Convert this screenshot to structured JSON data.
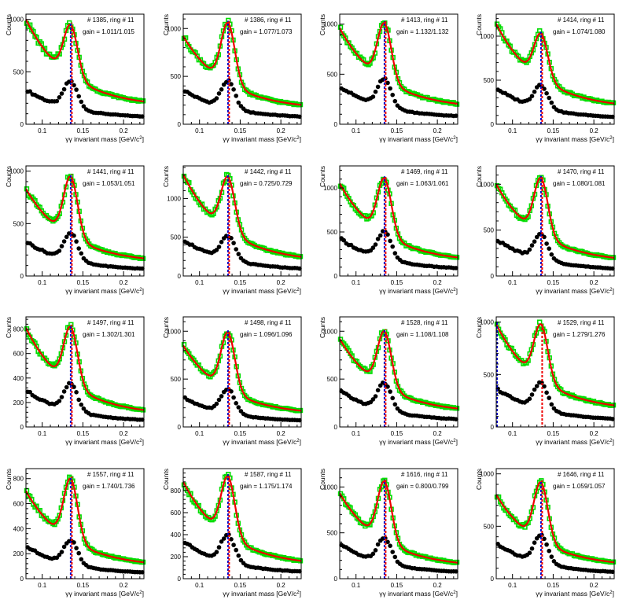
{
  "figure": {
    "xlabel_prefix": "γγ invariant mass [GeV/c",
    "xlabel_exponent": "2",
    "xlabel_suffix": "]",
    "ylabel": "Counts",
    "x_ticks": [
      "0.1",
      "0.15",
      "0.2"
    ],
    "colors": {
      "lower_markers": "#000000",
      "upper_markers": "#00dd00",
      "fit_curve": "#ee0000",
      "line_red": "#ee0000",
      "line_blue": "#0000cc"
    }
  },
  "chart_data": [
    {
      "type": "scatter",
      "title": "# 1385, ring # 11",
      "gain": "gain = 1.011/1.015",
      "xlim": [
        0.08,
        0.225
      ],
      "ylim": [
        0,
        1050
      ],
      "y_ticks": [
        0,
        500,
        1000
      ],
      "xlabel": "γγ invariant mass [GeV/c^2]",
      "ylabel": "Counts",
      "upper": {
        "base": 1000,
        "dip": 610,
        "peak": 950,
        "tail": 160
      },
      "lower": {
        "base": 330,
        "dip": 170,
        "peak": 410,
        "tail": 55
      },
      "peak_x": 0.135,
      "blue_x": 0.135
    },
    {
      "type": "scatter",
      "title": "# 1386, ring # 11",
      "gain": "gain = 1.077/1.073",
      "xlim": [
        0.08,
        0.225
      ],
      "ylim": [
        0,
        1150
      ],
      "y_ticks": [
        0,
        500,
        1000
      ],
      "xlabel": "γγ invariant mass [GeV/c^2]",
      "ylabel": "Counts",
      "upper": {
        "base": 920,
        "dip": 640,
        "peak": 1060,
        "tail": 150
      },
      "lower": {
        "base": 360,
        "dip": 240,
        "peak": 450,
        "tail": 60
      },
      "peak_x": 0.135,
      "blue_x": 0.135
    },
    {
      "type": "scatter",
      "title": "# 1413, ring # 11",
      "gain": "gain = 1.132/1.132",
      "xlim": [
        0.08,
        0.225
      ],
      "ylim": [
        0,
        1100
      ],
      "y_ticks": [
        0,
        500,
        1000
      ],
      "xlabel": "γγ invariant mass [GeV/c^2]",
      "ylabel": "Counts",
      "upper": {
        "base": 960,
        "dip": 690,
        "peak": 1010,
        "tail": 150
      },
      "lower": {
        "base": 380,
        "dip": 260,
        "peak": 450,
        "tail": 60
      },
      "peak_x": 0.135,
      "blue_x": 0.135
    },
    {
      "type": "scatter",
      "title": "# 1414, ring # 11",
      "gain": "gain = 1.074/1.080",
      "xlim": [
        0.08,
        0.225
      ],
      "ylim": [
        0,
        1250
      ],
      "y_ticks": [
        0,
        500,
        1000
      ],
      "xlabel": "γγ invariant mass [GeV/c^2]",
      "ylabel": "Counts",
      "upper": {
        "base": 1140,
        "dip": 700,
        "peak": 1030,
        "tail": 170
      },
      "lower": {
        "base": 410,
        "dip": 250,
        "peak": 450,
        "tail": 60
      },
      "peak_x": 0.135,
      "blue_x": 0.135
    },
    {
      "type": "scatter",
      "title": "# 1441, ring # 11",
      "gain": "gain = 1.053/1.051",
      "xlim": [
        0.08,
        0.225
      ],
      "ylim": [
        0,
        1050
      ],
      "y_ticks": [
        0,
        500,
        1000
      ],
      "xlabel": "γγ invariant mass [GeV/c^2]",
      "ylabel": "Counts",
      "upper": {
        "base": 830,
        "dip": 570,
        "peak": 950,
        "tail": 120
      },
      "lower": {
        "base": 330,
        "dip": 200,
        "peak": 410,
        "tail": 50
      },
      "peak_x": 0.135,
      "blue_x": 0.135
    },
    {
      "type": "scatter",
      "title": "# 1442, ring # 11",
      "gain": "gain = 0.725/0.729",
      "xlim": [
        0.08,
        0.225
      ],
      "ylim": [
        0,
        1420
      ],
      "y_ticks": [
        0,
        500,
        1000
      ],
      "xlabel": "γγ invariant mass [GeV/c^2]",
      "ylabel": "Counts",
      "upper": {
        "base": 1310,
        "dip": 760,
        "peak": 1280,
        "tail": 170
      },
      "lower": {
        "base": 470,
        "dip": 310,
        "peak": 520,
        "tail": 70
      },
      "peak_x": 0.135,
      "blue_x": 0.135
    },
    {
      "type": "scatter",
      "title": "# 1469, ring # 11",
      "gain": "gain = 1.063/1.061",
      "xlim": [
        0.08,
        0.225
      ],
      "ylim": [
        0,
        1250
      ],
      "y_ticks": [
        0,
        500,
        1000
      ],
      "xlabel": "γγ invariant mass [GeV/c^2]",
      "ylabel": "Counts",
      "upper": {
        "base": 1050,
        "dip": 730,
        "peak": 1110,
        "tail": 150
      },
      "lower": {
        "base": 430,
        "dip": 300,
        "peak": 500,
        "tail": 65
      },
      "peak_x": 0.135,
      "blue_x": 0.135
    },
    {
      "type": "scatter",
      "title": "# 1470, ring # 11",
      "gain": "gain = 1.080/1.081",
      "xlim": [
        0.08,
        0.225
      ],
      "ylim": [
        0,
        1200
      ],
      "y_ticks": [
        0,
        500,
        1000
      ],
      "xlabel": "γγ invariant mass [GeV/c^2]",
      "ylabel": "Counts",
      "upper": {
        "base": 1000,
        "dip": 690,
        "peak": 1070,
        "tail": 140
      },
      "lower": {
        "base": 400,
        "dip": 280,
        "peak": 450,
        "tail": 60
      },
      "peak_x": 0.135,
      "blue_x": 0.135
    },
    {
      "type": "scatter",
      "title": "# 1497, ring # 11",
      "gain": "gain = 1.302/1.301",
      "xlim": [
        0.08,
        0.225
      ],
      "ylim": [
        0,
        900
      ],
      "y_ticks": [
        0,
        200,
        400,
        600,
        800
      ],
      "xlabel": "γγ invariant mass [GeV/c^2]",
      "ylabel": "Counts",
      "upper": {
        "base": 810,
        "dip": 510,
        "peak": 820,
        "tail": 90
      },
      "lower": {
        "base": 300,
        "dip": 190,
        "peak": 350,
        "tail": 40
      },
      "peak_x": 0.135,
      "blue_x": 0.135
    },
    {
      "type": "scatter",
      "title": "# 1498, ring # 11",
      "gain": "gain = 1.096/1.096",
      "xlim": [
        0.08,
        0.225
      ],
      "ylim": [
        0,
        1150
      ],
      "y_ticks": [
        0,
        500,
        1000
      ],
      "xlabel": "γγ invariant mass [GeV/c^2]",
      "ylabel": "Counts",
      "upper": {
        "base": 850,
        "dip": 570,
        "peak": 990,
        "tail": 120
      },
      "lower": {
        "base": 310,
        "dip": 200,
        "peak": 400,
        "tail": 50
      },
      "peak_x": 0.135,
      "blue_x": 0.135
    },
    {
      "type": "scatter",
      "title": "# 1528, ring # 11",
      "gain": "gain = 1.108/1.108",
      "xlim": [
        0.08,
        0.225
      ],
      "ylim": [
        0,
        1150
      ],
      "y_ticks": [
        0,
        500,
        1000
      ],
      "xlabel": "γγ invariant mass [GeV/c^2]",
      "ylabel": "Counts",
      "upper": {
        "base": 920,
        "dip": 640,
        "peak": 1000,
        "tail": 140
      },
      "lower": {
        "base": 380,
        "dip": 260,
        "peak": 460,
        "tail": 60
      },
      "peak_x": 0.135,
      "blue_x": 0.135
    },
    {
      "type": "scatter",
      "title": "# 1529, ring # 11",
      "gain": "gain = 1.279/1.276",
      "xlim": [
        0.08,
        0.225
      ],
      "ylim": [
        0,
        1050
      ],
      "y_ticks": [
        0,
        500,
        1000
      ],
      "xlabel": "γγ invariant mass [GeV/c^2]",
      "ylabel": "Counts",
      "upper": {
        "base": 980,
        "dip": 640,
        "peak": 980,
        "tail": 150
      },
      "lower": {
        "base": 370,
        "dip": 250,
        "peak": 420,
        "tail": 55
      },
      "peak_x": 0.135,
      "blue_x": 0.081
    },
    {
      "type": "scatter",
      "title": "# 1557, ring # 11",
      "gain": "gain = 1.740/1.736",
      "xlim": [
        0.08,
        0.225
      ],
      "ylim": [
        0,
        880
      ],
      "y_ticks": [
        0,
        200,
        400,
        600,
        800
      ],
      "xlabel": "γγ invariant mass [GeV/c^2]",
      "ylabel": "Counts",
      "upper": {
        "base": 700,
        "dip": 460,
        "peak": 800,
        "tail": 90
      },
      "lower": {
        "base": 260,
        "dip": 170,
        "peak": 310,
        "tail": 35
      },
      "peak_x": 0.135,
      "blue_x": 0.135
    },
    {
      "type": "scatter",
      "title": "# 1587, ring # 11",
      "gain": "gain = 1.175/1.174",
      "xlim": [
        0.08,
        0.225
      ],
      "ylim": [
        0,
        1000
      ],
      "y_ticks": [
        0,
        200,
        400,
        600,
        800
      ],
      "xlabel": "γγ invariant mass [GeV/c^2]",
      "ylabel": "Counts",
      "upper": {
        "base": 880,
        "dip": 560,
        "peak": 930,
        "tail": 110
      },
      "lower": {
        "base": 340,
        "dip": 230,
        "peak": 400,
        "tail": 45
      },
      "peak_x": 0.135,
      "blue_x": 0.135
    },
    {
      "type": "scatter",
      "title": "# 1616, ring # 11",
      "gain": "gain = 0.800/0.799",
      "xlim": [
        0.08,
        0.225
      ],
      "ylim": [
        0,
        1200
      ],
      "y_ticks": [
        0,
        500,
        1000
      ],
      "xlabel": "γγ invariant mass [GeV/c^2]",
      "ylabel": "Counts",
      "upper": {
        "base": 930,
        "dip": 600,
        "peak": 1060,
        "tail": 120
      },
      "lower": {
        "base": 380,
        "dip": 250,
        "peak": 450,
        "tail": 55
      },
      "peak_x": 0.135,
      "blue_x": 0.135
    },
    {
      "type": "scatter",
      "title": "# 1646, ring # 11",
      "gain": "gain = 1.059/1.057",
      "xlim": [
        0.08,
        0.225
      ],
      "ylim": [
        0,
        1050
      ],
      "y_ticks": [
        0,
        500,
        1000
      ],
      "xlabel": "γγ invariant mass [GeV/c^2]",
      "ylabel": "Counts",
      "upper": {
        "base": 800,
        "dip": 520,
        "peak": 920,
        "tail": 110
      },
      "lower": {
        "base": 340,
        "dip": 200,
        "peak": 410,
        "tail": 45
      },
      "peak_x": 0.135,
      "blue_x": 0.135
    }
  ]
}
